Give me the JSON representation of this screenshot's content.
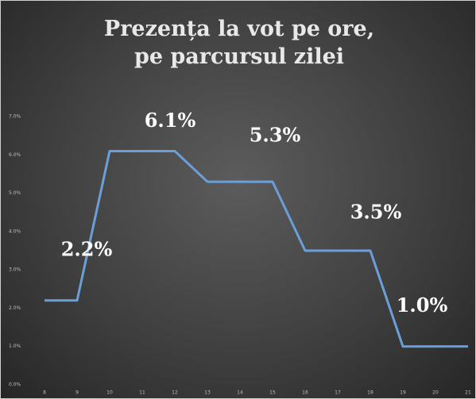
{
  "chart_data": {
    "type": "line",
    "title": "Prezența la vot pe ore, pe parcursul zilei",
    "categories": [
      "8",
      "9",
      "10",
      "11",
      "12",
      "13",
      "14",
      "15",
      "16",
      "17",
      "18",
      "19",
      "20",
      "21"
    ],
    "series": [
      {
        "name": null,
        "color": "#6a9fd8",
        "values": [
          2.2,
          2.2,
          6.1,
          6.1,
          6.1,
          5.3,
          5.3,
          5.3,
          3.5,
          3.5,
          3.5,
          1.0,
          1.0,
          1.0
        ],
        "value_labels": [
          null,
          "2.2%",
          null,
          "6.1%",
          null,
          null,
          "5.3%",
          null,
          null,
          "3.5%",
          null,
          null,
          "1.0%",
          null
        ]
      }
    ],
    "ylim": [
      0,
      7
    ],
    "yticks": [
      {
        "value": 0,
        "label": "0.0%"
      },
      {
        "value": 1,
        "label": "1.0%"
      },
      {
        "value": 2,
        "label": "2.0%"
      },
      {
        "value": 3,
        "label": "3.0%"
      },
      {
        "value": 4,
        "label": "4.0%"
      },
      {
        "value": 5,
        "label": "5.0%"
      },
      {
        "value": 6,
        "label": "6.0%"
      },
      {
        "value": 7,
        "label": "7.0%"
      }
    ],
    "grid": false
  }
}
